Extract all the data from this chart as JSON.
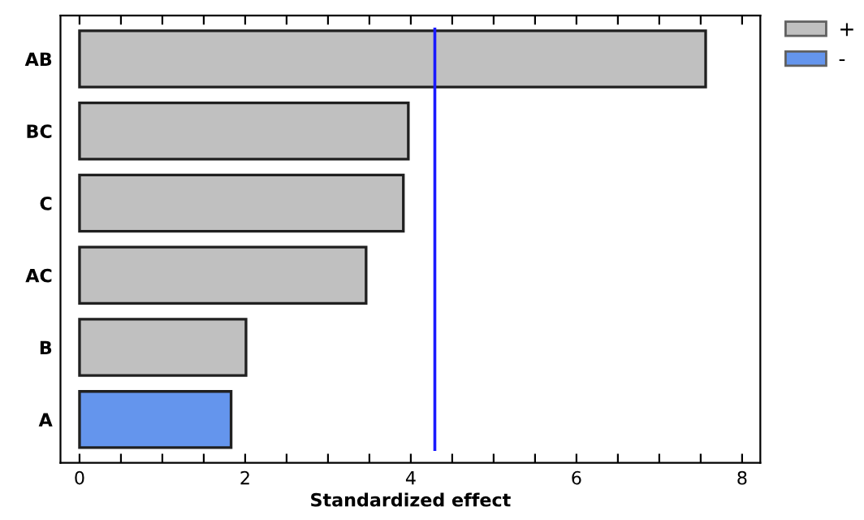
{
  "chart_data": {
    "type": "bar",
    "orientation": "horizontal",
    "xlabel": "Standardized effect",
    "categories": [
      "AB",
      "BC",
      "C",
      "AC",
      "B",
      "A"
    ],
    "series": [
      {
        "name": "+",
        "color": "#c0c0c0",
        "values": [
          7.56,
          3.97,
          3.91,
          3.46,
          2.01,
          null
        ]
      },
      {
        "name": "-",
        "color": "#6495ed",
        "values": [
          null,
          null,
          null,
          null,
          null,
          1.83
        ]
      }
    ],
    "xlim": [
      -0.23,
      8.22
    ],
    "xticks": [
      0,
      {
        "value": 0.5,
        "label": null
      },
      {
        "value": 1,
        "label": null
      },
      {
        "value": 1.5,
        "label": null
      },
      2,
      {
        "value": 2.5,
        "label": null
      },
      {
        "value": 3,
        "label": null
      },
      {
        "value": 3.5,
        "label": null
      },
      4,
      {
        "value": 4.5,
        "label": null
      },
      {
        "value": 5,
        "label": null
      },
      {
        "value": 5.5,
        "label": null
      },
      6,
      {
        "value": 6.5,
        "label": null
      },
      {
        "value": 7,
        "label": null
      },
      {
        "value": 7.5,
        "label": null
      },
      8
    ],
    "ref_lines": [
      {
        "axis": "x",
        "value": 4.29,
        "color": "#1a1aff"
      }
    ],
    "legend": "top right",
    "grid": false
  }
}
